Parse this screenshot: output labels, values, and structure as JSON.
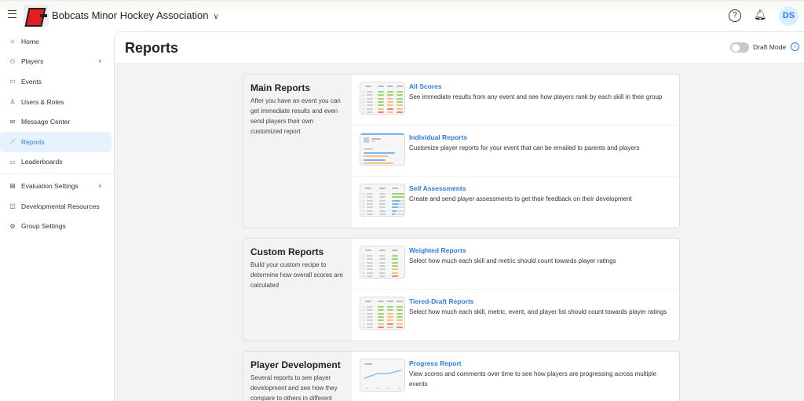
{
  "header": {
    "org_name": "Bobcats Minor Hockey Association",
    "avatar_initials": "DS"
  },
  "sidebar": {
    "items": [
      {
        "label": "Home",
        "icon": "home-icon",
        "glyph": "⌂"
      },
      {
        "label": "Players",
        "icon": "players-icon",
        "glyph": "⚇",
        "caret": true
      },
      {
        "label": "Events",
        "icon": "calendar-icon",
        "glyph": "▭"
      },
      {
        "label": "Users & Roles",
        "icon": "user-icon",
        "glyph": "♙"
      },
      {
        "label": "Message Center",
        "icon": "mail-icon",
        "glyph": "✉"
      },
      {
        "label": "Reports",
        "icon": "chart-icon",
        "glyph": "⟋",
        "active": true
      },
      {
        "label": "Leaderboards",
        "icon": "monitor-icon",
        "glyph": "▭"
      },
      {
        "label": "Evaluation Settings",
        "icon": "clipboard-icon",
        "glyph": "▤",
        "caret": true,
        "sep": true
      },
      {
        "label": "Developmental Resources",
        "icon": "book-icon",
        "glyph": "◫"
      },
      {
        "label": "Group Settings",
        "icon": "gear-icon",
        "glyph": "⚙"
      }
    ]
  },
  "page": {
    "title": "Reports",
    "draft_mode_label": "Draft Mode",
    "draft_mode_on": false
  },
  "colors": {
    "accent": "#2b7de9",
    "green": "#9bd66a",
    "orange": "#fcc27a",
    "red": "#f08080",
    "blue": "#7ab6ee"
  },
  "sections": [
    {
      "title": "Main Reports",
      "description": "After you have an event you can get immediate results and even send players their own customized report",
      "items": [
        {
          "title": "All Scores",
          "description": "See immediate results from any event and see how players rank by each skill in their group",
          "thumb": "scores4"
        },
        {
          "title": "Individual Reports",
          "description": "Customize player reports for your event that can be emailed to parents and players",
          "thumb": "individual"
        },
        {
          "title": "Self Assessments",
          "description": "Create and send player assessments to get their feedback on their development",
          "thumb": "self"
        }
      ]
    },
    {
      "title": "Custom Reports",
      "description": "Build your custom recipe to determine how overall scores are calculated",
      "items": [
        {
          "title": "Weighted Reports",
          "description": "Select how much each skill and metric should count towards player ratings",
          "thumb": "weighted"
        },
        {
          "title": "Tiered-Draft Reports",
          "description": "Select how much each skill, metric, event, and player list should count towards player ratings",
          "thumb": "scores4"
        }
      ]
    },
    {
      "title": "Player Development",
      "description": "Several reports to see player development and see how they compare to others in different",
      "items": [
        {
          "title": "Progress Report",
          "description": "View scores and comments over time to see how players are progressing across multiple events",
          "thumb": "progress"
        }
      ]
    }
  ]
}
